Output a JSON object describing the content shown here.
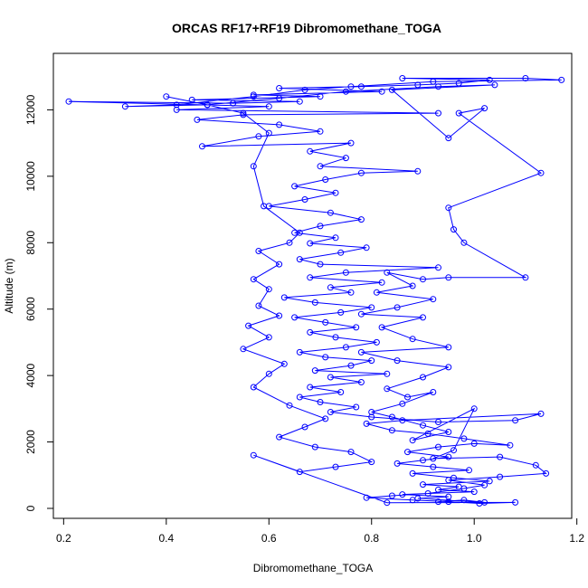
{
  "chart_data": {
    "type": "scatter",
    "title": "ORCAS RF17+RF19 Dibromomethane_TOGA",
    "xlabel": "Dibromomethane_TOGA",
    "ylabel": "Altitude (m)",
    "xlim": [
      0.18,
      1.19
    ],
    "ylim": [
      -300,
      13700
    ],
    "xticks": [
      0.2,
      0.4,
      0.6,
      0.8,
      1.0,
      1.2
    ],
    "xtick_labels": [
      "0.2",
      "0.4",
      "0.6",
      "0.8",
      "1.0",
      "1.2"
    ],
    "yticks": [
      0,
      2000,
      4000,
      6000,
      8000,
      10000,
      12000
    ],
    "ytick_labels": [
      "0",
      "2000",
      "4000",
      "6000",
      "8000",
      "10000",
      "12000"
    ],
    "grid": false,
    "series": [
      {
        "color": "#0000ff",
        "marker": "open-circle",
        "connected": true,
        "points": [
          [
            0.93,
            200
          ],
          [
            0.98,
            250
          ],
          [
            1.02,
            180
          ],
          [
            0.89,
            300
          ],
          [
            0.95,
            350
          ],
          [
            0.86,
            420
          ],
          [
            1.0,
            500
          ],
          [
            0.93,
            560
          ],
          [
            0.97,
            650
          ],
          [
            0.9,
            720
          ],
          [
            1.03,
            820
          ],
          [
            0.96,
            920
          ],
          [
            0.88,
            1050
          ],
          [
            0.99,
            1150
          ],
          [
            0.92,
            1250
          ],
          [
            0.85,
            1350
          ],
          [
            0.9,
            1450
          ],
          [
            0.95,
            1550
          ],
          [
            0.87,
            1700
          ],
          [
            0.93,
            1850
          ],
          [
            1.0,
            1950
          ],
          [
            1.07,
            1900
          ],
          [
            0.98,
            2100
          ],
          [
            0.91,
            2250
          ],
          [
            0.84,
            2350
          ],
          [
            0.79,
            2550
          ],
          [
            0.86,
            2650
          ],
          [
            1.13,
            2850
          ],
          [
            1.08,
            2650
          ],
          [
            0.93,
            2600
          ],
          [
            0.8,
            2750
          ],
          [
            0.72,
            2900
          ],
          [
            0.77,
            3050
          ],
          [
            0.7,
            3200
          ],
          [
            0.66,
            3350
          ],
          [
            0.74,
            3500
          ],
          [
            0.68,
            3650
          ],
          [
            0.78,
            3800
          ],
          [
            0.72,
            3950
          ],
          [
            0.83,
            4050
          ],
          [
            0.69,
            4150
          ],
          [
            0.76,
            4300
          ],
          [
            0.8,
            4450
          ],
          [
            0.71,
            4550
          ],
          [
            0.66,
            4700
          ],
          [
            0.75,
            4850
          ],
          [
            0.81,
            5000
          ],
          [
            0.73,
            5150
          ],
          [
            0.68,
            5300
          ],
          [
            0.77,
            5450
          ],
          [
            0.71,
            5600
          ],
          [
            0.65,
            5750
          ],
          [
            0.74,
            5900
          ],
          [
            0.8,
            6050
          ],
          [
            0.69,
            6200
          ],
          [
            0.63,
            6350
          ],
          [
            0.76,
            6500
          ],
          [
            0.72,
            6650
          ],
          [
            0.82,
            6800
          ],
          [
            0.68,
            6950
          ],
          [
            0.75,
            7100
          ],
          [
            0.93,
            7250
          ],
          [
            0.7,
            7350
          ],
          [
            0.66,
            7500
          ],
          [
            0.74,
            7700
          ],
          [
            0.79,
            7850
          ],
          [
            0.68,
            7980
          ],
          [
            0.73,
            8150
          ],
          [
            0.65,
            8300
          ],
          [
            0.7,
            8500
          ],
          [
            0.78,
            8700
          ],
          [
            0.72,
            8900
          ],
          [
            0.6,
            9100
          ],
          [
            0.67,
            9300
          ],
          [
            0.73,
            9500
          ],
          [
            0.65,
            9700
          ],
          [
            0.71,
            9900
          ],
          [
            0.78,
            10100
          ],
          [
            0.89,
            10150
          ],
          [
            0.7,
            10300
          ],
          [
            0.75,
            10550
          ],
          [
            0.68,
            10750
          ],
          [
            0.76,
            11000
          ],
          [
            0.47,
            10900
          ],
          [
            0.58,
            11200
          ],
          [
            0.7,
            11350
          ],
          [
            0.62,
            11550
          ],
          [
            0.46,
            11700
          ],
          [
            0.55,
            11850
          ],
          [
            0.93,
            11900
          ],
          [
            0.42,
            12000
          ],
          [
            0.6,
            12100
          ],
          [
            0.21,
            12250
          ],
          [
            0.53,
            12200
          ],
          [
            0.66,
            12250
          ],
          [
            0.45,
            12300
          ],
          [
            0.7,
            12400
          ],
          [
            0.57,
            12450
          ],
          [
            0.82,
            12550
          ],
          [
            0.62,
            12650
          ],
          [
            0.78,
            12700
          ],
          [
            0.89,
            12750
          ],
          [
            0.97,
            12800
          ],
          [
            1.03,
            12900
          ],
          [
            0.86,
            12950
          ],
          [
            1.1,
            12950
          ],
          [
            1.17,
            12900
          ],
          [
            0.92,
            12850
          ],
          [
            0.76,
            12700
          ],
          [
            0.67,
            12600
          ],
          [
            0.57,
            12400
          ],
          [
            0.42,
            12150
          ],
          [
            0.32,
            12100
          ],
          [
            0.48,
            12150
          ],
          [
            0.62,
            12350
          ],
          [
            0.75,
            12550
          ],
          [
            0.93,
            12700
          ],
          [
            1.04,
            12750
          ],
          [
            0.84,
            12600
          ],
          [
            0.95,
            11150
          ],
          [
            1.02,
            12050
          ],
          [
            0.97,
            11900
          ],
          [
            1.13,
            10100
          ],
          [
            0.95,
            9050
          ],
          [
            0.96,
            8400
          ],
          [
            0.98,
            8000
          ],
          [
            1.1,
            6950
          ],
          [
            0.95,
            6950
          ],
          [
            0.9,
            6900
          ],
          [
            0.83,
            7100
          ],
          [
            0.88,
            6700
          ],
          [
            0.81,
            6500
          ],
          [
            0.92,
            6300
          ],
          [
            0.85,
            6050
          ],
          [
            0.78,
            5850
          ],
          [
            0.9,
            5750
          ],
          [
            0.82,
            5450
          ],
          [
            0.88,
            5100
          ],
          [
            0.95,
            4850
          ],
          [
            0.78,
            4700
          ],
          [
            0.85,
            4450
          ],
          [
            0.95,
            4250
          ],
          [
            0.9,
            3950
          ],
          [
            0.83,
            3600
          ],
          [
            0.87,
            3350
          ],
          [
            0.92,
            3500
          ],
          [
            0.86,
            3150
          ],
          [
            0.8,
            2900
          ],
          [
            0.84,
            2750
          ],
          [
            0.9,
            2500
          ],
          [
            0.95,
            2300
          ],
          [
            0.88,
            2050
          ],
          [
            1.0,
            3000
          ],
          [
            0.96,
            1750
          ],
          [
            0.92,
            1500
          ],
          [
            1.05,
            1550
          ],
          [
            1.12,
            1300
          ],
          [
            1.14,
            1050
          ],
          [
            1.05,
            950
          ],
          [
            0.95,
            850
          ],
          [
            1.02,
            700
          ],
          [
            0.98,
            600
          ],
          [
            0.91,
            450
          ],
          [
            0.84,
            380
          ],
          [
            0.79,
            320
          ],
          [
            0.88,
            250
          ],
          [
            0.95,
            200
          ],
          [
            1.01,
            150
          ],
          [
            1.08,
            180
          ],
          [
            0.83,
            170
          ],
          [
            0.57,
            1600
          ],
          [
            0.66,
            1100
          ],
          [
            0.73,
            1250
          ],
          [
            0.8,
            1400
          ],
          [
            0.76,
            1700
          ],
          [
            0.69,
            1850
          ],
          [
            0.62,
            2150
          ],
          [
            0.67,
            2450
          ],
          [
            0.71,
            2700
          ],
          [
            0.64,
            3100
          ],
          [
            0.57,
            3650
          ],
          [
            0.6,
            4050
          ],
          [
            0.63,
            4350
          ],
          [
            0.55,
            4800
          ],
          [
            0.6,
            5150
          ],
          [
            0.56,
            5500
          ],
          [
            0.62,
            5800
          ],
          [
            0.58,
            6100
          ],
          [
            0.6,
            6600
          ],
          [
            0.57,
            6900
          ],
          [
            0.62,
            7350
          ],
          [
            0.58,
            7750
          ],
          [
            0.64,
            8000
          ],
          [
            0.66,
            8300
          ],
          [
            0.59,
            9100
          ],
          [
            0.57,
            10300
          ],
          [
            0.6,
            11300
          ],
          [
            0.55,
            11900
          ],
          [
            0.48,
            12150
          ],
          [
            0.4,
            12400
          ]
        ]
      }
    ]
  }
}
